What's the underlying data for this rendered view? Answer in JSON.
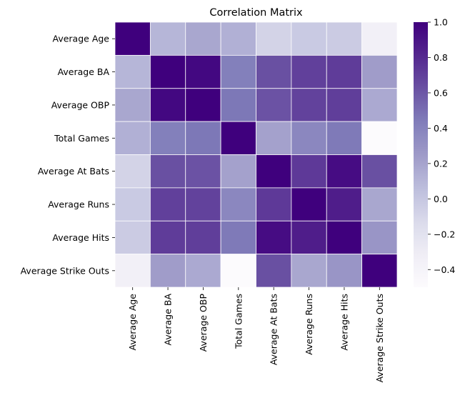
{
  "chart_data": {
    "type": "heatmap",
    "title": "Correlation Matrix",
    "xlabel": "",
    "ylabel": "",
    "rows": [
      "Average Age",
      "Average BA",
      "Average OBP",
      "Total Games",
      "Average At Bats",
      "Average Runs",
      "Average Hits",
      "Average Strike Outs"
    ],
    "cols": [
      "Average Age",
      "Average BA",
      "Average OBP",
      "Total Games",
      "Average At Bats",
      "Average Runs",
      "Average Hits",
      "Average Strike Outs"
    ],
    "values": [
      [
        1.0,
        0.1,
        0.18,
        0.13,
        -0.08,
        -0.02,
        -0.03,
        -0.35
      ],
      [
        0.1,
        1.0,
        0.96,
        0.42,
        0.63,
        0.7,
        0.72,
        0.24
      ],
      [
        0.18,
        0.96,
        1.0,
        0.46,
        0.62,
        0.69,
        0.71,
        0.17
      ],
      [
        0.13,
        0.42,
        0.46,
        1.0,
        0.21,
        0.37,
        0.45,
        -0.5
      ],
      [
        -0.08,
        0.63,
        0.62,
        0.21,
        1.0,
        0.73,
        0.94,
        0.63
      ],
      [
        -0.02,
        0.7,
        0.69,
        0.37,
        0.73,
        1.0,
        0.86,
        0.18
      ],
      [
        -0.03,
        0.72,
        0.71,
        0.45,
        0.94,
        0.86,
        1.0,
        0.28
      ],
      [
        -0.35,
        0.24,
        0.17,
        -0.5,
        0.63,
        0.18,
        0.28,
        1.0
      ]
    ],
    "colorbar": {
      "min": -0.5,
      "max": 1.0,
      "ticks": [
        -0.4,
        -0.2,
        0.0,
        0.2,
        0.4,
        0.6,
        0.8,
        1.0
      ],
      "tick_labels": [
        "−0.4",
        "−0.2",
        "0.0",
        "0.2",
        "0.4",
        "0.6",
        "0.8",
        "1.0"
      ]
    },
    "colormap": "Purples",
    "colormap_stops": [
      "#fcfbfd",
      "#efedf5",
      "#dadaeb",
      "#bcbddc",
      "#9e9ac8",
      "#807dba",
      "#6a51a3",
      "#54278f",
      "#3f007d"
    ],
    "cell_border_color": "#ffffff"
  }
}
